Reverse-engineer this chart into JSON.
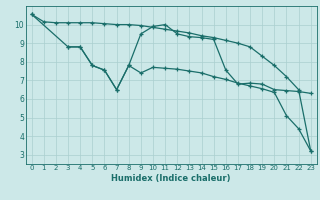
{
  "xlabel": "Humidex (Indice chaleur)",
  "bg_color": "#cce8e8",
  "grid_color": "#aacfcf",
  "line_color": "#1a6e6a",
  "xlim": [
    -0.5,
    23.5
  ],
  "ylim": [
    2.5,
    11.0
  ],
  "yticks": [
    3,
    4,
    5,
    6,
    7,
    8,
    9,
    10
  ],
  "xticks": [
    0,
    1,
    2,
    3,
    4,
    5,
    6,
    7,
    8,
    9,
    10,
    11,
    12,
    13,
    14,
    15,
    16,
    17,
    18,
    19,
    20,
    21,
    22,
    23
  ],
  "line1_x": [
    0,
    1,
    2,
    3,
    4,
    5,
    6,
    7,
    8,
    9,
    10,
    11,
    12,
    13,
    14,
    15,
    16,
    17,
    18,
    19,
    20,
    21,
    22,
    23
  ],
  "line1_y": [
    10.55,
    10.15,
    10.1,
    10.1,
    10.1,
    10.1,
    10.05,
    10.0,
    10.0,
    9.95,
    9.85,
    9.75,
    9.65,
    9.55,
    9.4,
    9.3,
    9.15,
    9.0,
    8.8,
    8.3,
    7.8,
    7.2,
    6.5,
    3.2
  ],
  "line2_x": [
    3,
    4,
    5,
    6,
    7,
    8,
    9,
    10,
    11,
    12,
    13,
    14,
    15,
    16,
    17,
    18,
    19,
    20,
    21,
    22,
    23
  ],
  "line2_y": [
    8.8,
    8.8,
    7.8,
    7.55,
    6.5,
    7.8,
    9.5,
    9.9,
    10.0,
    9.5,
    9.35,
    9.3,
    9.2,
    7.55,
    6.8,
    6.85,
    6.8,
    6.5,
    6.45,
    6.4,
    6.3
  ],
  "line3_x": [
    0,
    3,
    4,
    5,
    6,
    7,
    8,
    9,
    10,
    11,
    12,
    13,
    14,
    15,
    16,
    17,
    18,
    19,
    20,
    21,
    22,
    23
  ],
  "line3_y": [
    10.55,
    8.8,
    8.8,
    7.8,
    7.55,
    6.5,
    7.8,
    7.4,
    7.7,
    7.65,
    7.6,
    7.5,
    7.4,
    7.2,
    7.05,
    6.85,
    6.7,
    6.55,
    6.35,
    5.1,
    4.4,
    3.2
  ]
}
